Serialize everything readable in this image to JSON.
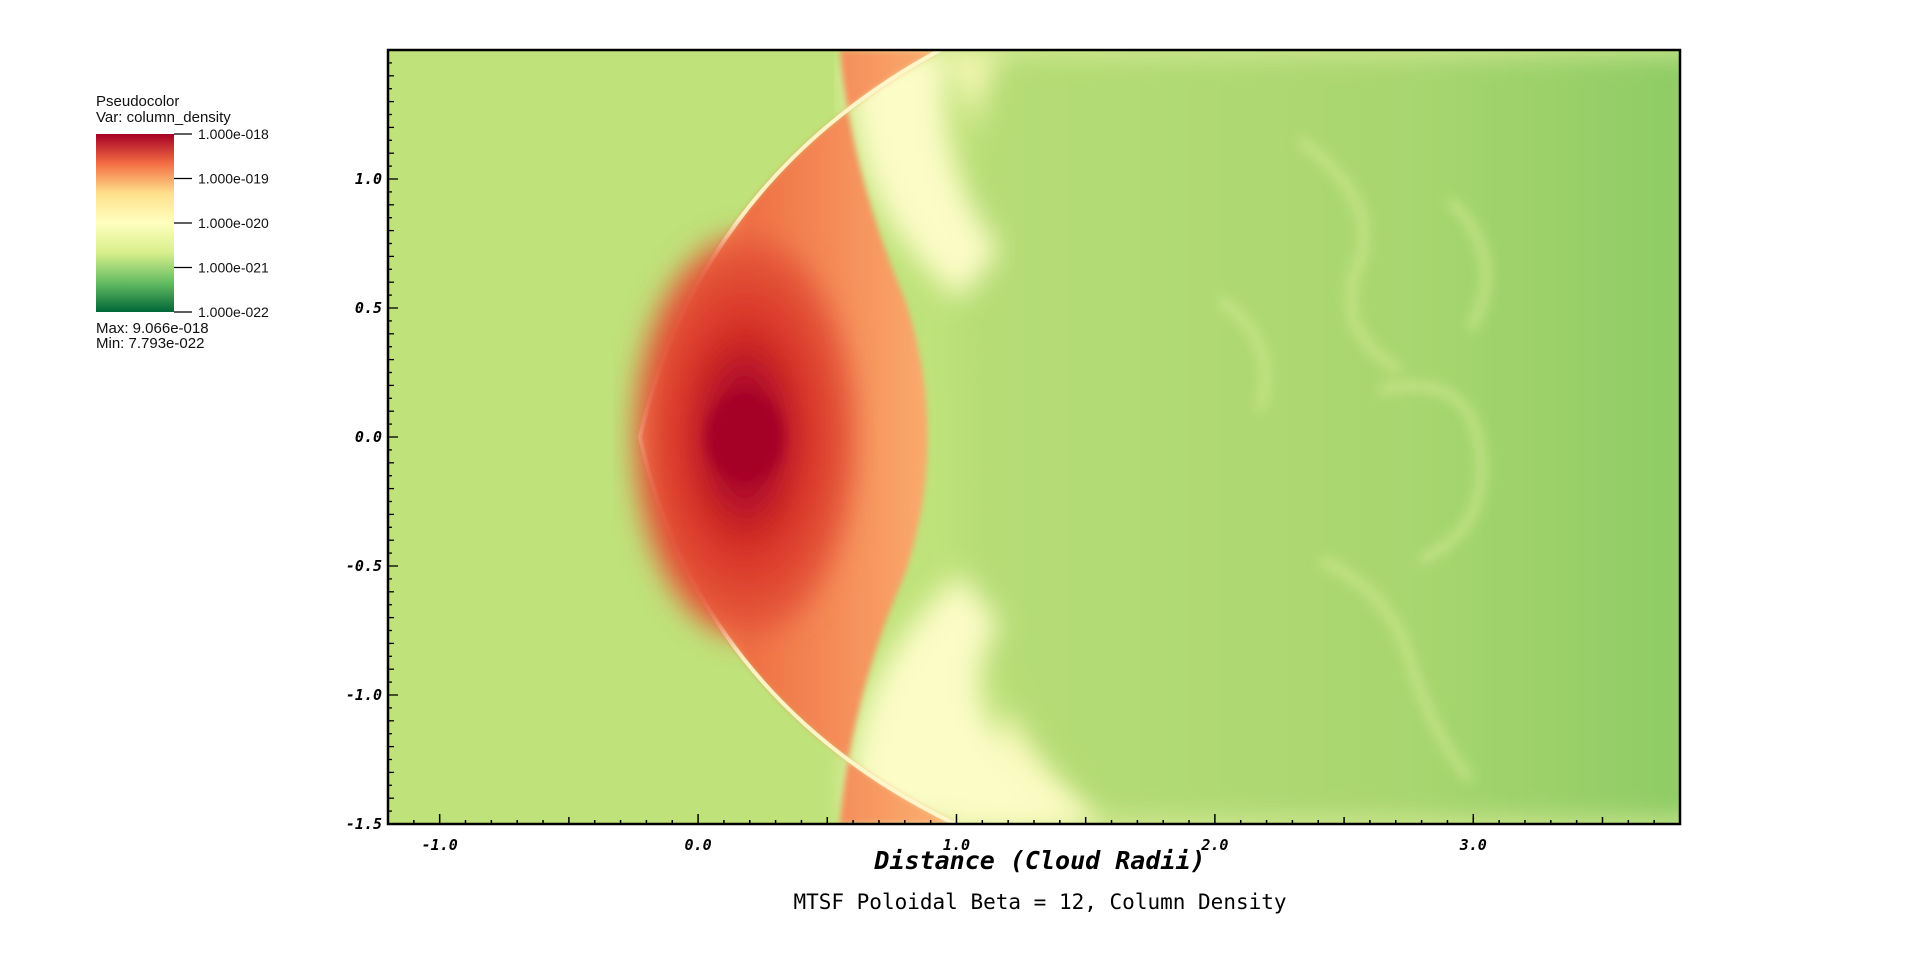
{
  "chart_data": {
    "type": "heatmap",
    "title": "MTSF Poloidal Beta = 12, Column Density",
    "xlabel": "Distance (Cloud Radii)",
    "ylabel": "",
    "xlim": [
      -1.2,
      3.8
    ],
    "ylim": [
      -1.5,
      1.5
    ],
    "x_ticks": [
      "-1.0",
      "0.0",
      "1.0",
      "2.0",
      "3.0"
    ],
    "y_ticks": [
      "-1.5",
      "-1.0",
      "-0.5",
      "0.0",
      "0.5",
      "1.0"
    ],
    "legend_placement": "top-left",
    "colorbar": {
      "header": "Pseudocolor",
      "var_label": "Var: column_density",
      "ticks": [
        "1.000e-018",
        "1.000e-019",
        "1.000e-020",
        "1.000e-021",
        "1.000e-022"
      ],
      "max_label": "Max:  9.066e-018",
      "min_label": "Min:  7.793e-022",
      "colors": [
        "#a50026",
        "#f46d43",
        "#fee08b",
        "#ffffbf",
        "#d9ef8b",
        "#66bd63",
        "#006837"
      ]
    },
    "features": {
      "core_center": [
        0.17,
        0.0
      ],
      "core_color": "#a50026",
      "background_color": "#bfe27a"
    }
  }
}
